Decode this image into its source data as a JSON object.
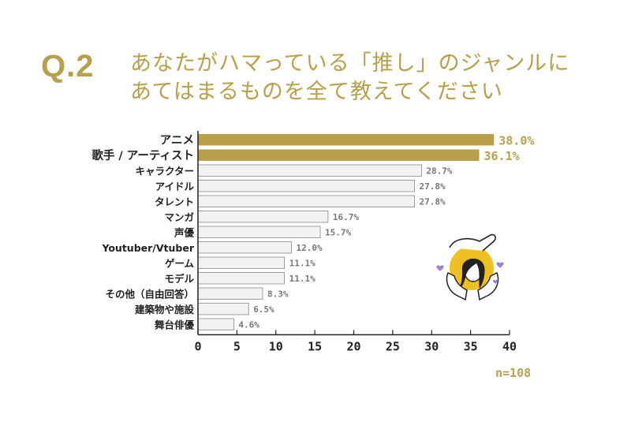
{
  "question": {
    "number": "Q.2",
    "line1": "あなたがハマっている「推し」のジャンルに",
    "line2": "あてはまるものを全て教えてください"
  },
  "sample": "n=108",
  "colors": {
    "accent": "#b8a04b",
    "bar_highlight": "#b8a04b",
    "bar_default": "#f2f2f2",
    "bar_border": "#888888",
    "illustration_yellow": "#f0c020",
    "heart_purple": "#9b7fd0"
  },
  "illustration": {
    "icon": "woman-with-hands-heart-illustration"
  },
  "chart_data": {
    "type": "bar",
    "orientation": "horizontal",
    "categories": [
      "アニメ",
      "歌手 / アーティスト",
      "キャラクター",
      "アイドル",
      "タレント",
      "マンガ",
      "声優",
      "Youtuber/Vtuber",
      "ゲーム",
      "モデル",
      "その他（自由回答）",
      "建築物や施設",
      "舞台俳優"
    ],
    "values": [
      38.0,
      36.1,
      28.7,
      27.8,
      27.8,
      16.7,
      15.7,
      12.0,
      11.1,
      11.1,
      8.3,
      6.5,
      4.6
    ],
    "value_labels": [
      "38.0%",
      "36.1%",
      "28.7%",
      "27.8%",
      "27.8%",
      "16.7%",
      "15.7%",
      "12.0%",
      "11.1%",
      "11.1%",
      "8.3%",
      "6.5%",
      "4.6%"
    ],
    "highlighted": [
      true,
      true,
      false,
      false,
      false,
      false,
      false,
      false,
      false,
      false,
      false,
      false,
      false
    ],
    "xlim": [
      0,
      40
    ],
    "xticks": [
      "0",
      "5",
      "10",
      "15",
      "20",
      "25",
      "30",
      "35",
      "40"
    ],
    "grid": false
  }
}
